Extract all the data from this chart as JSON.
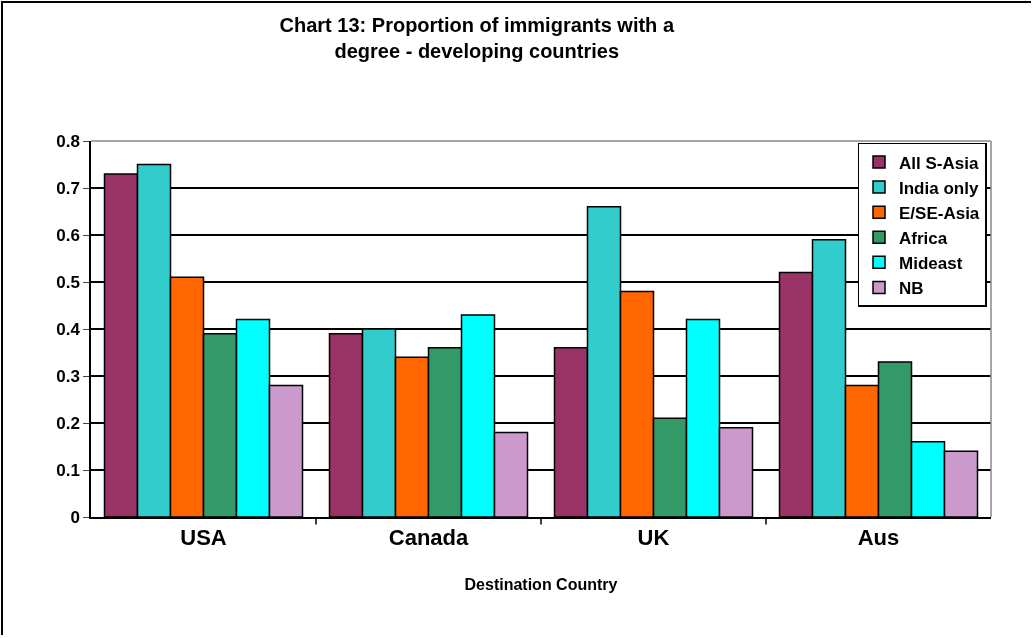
{
  "chart_data": {
    "type": "bar",
    "title": "Chart 13: Proportion of immigrants with a\ndegree - developing countries",
    "xlabel": "Destination Country",
    "categories": [
      "USA",
      "Canada",
      "UK",
      "Aus"
    ],
    "series": [
      {
        "name": "All S-Asia",
        "color": "#993366",
        "values": [
          0.73,
          0.39,
          0.36,
          0.52
        ]
      },
      {
        "name": "India only",
        "color": "#33cccc",
        "values": [
          0.75,
          0.4,
          0.66,
          0.59
        ]
      },
      {
        "name": "E/SE-Asia",
        "color": "#ff6600",
        "values": [
          0.51,
          0.34,
          0.48,
          0.28
        ]
      },
      {
        "name": "Africa",
        "color": "#339966",
        "values": [
          0.39,
          0.36,
          0.21,
          0.33
        ]
      },
      {
        "name": "Mideast",
        "color": "#00ffff",
        "values": [
          0.42,
          0.43,
          0.42,
          0.16
        ]
      },
      {
        "name": "NB",
        "color": "#cc99cc",
        "values": [
          0.28,
          0.18,
          0.19,
          0.14
        ]
      }
    ],
    "ylim": [
      0,
      0.8
    ],
    "yticks": [
      0,
      0.1,
      0.2,
      0.3,
      0.4,
      0.5,
      0.6,
      0.7,
      0.8
    ],
    "grid": "y",
    "legend": "top right"
  }
}
